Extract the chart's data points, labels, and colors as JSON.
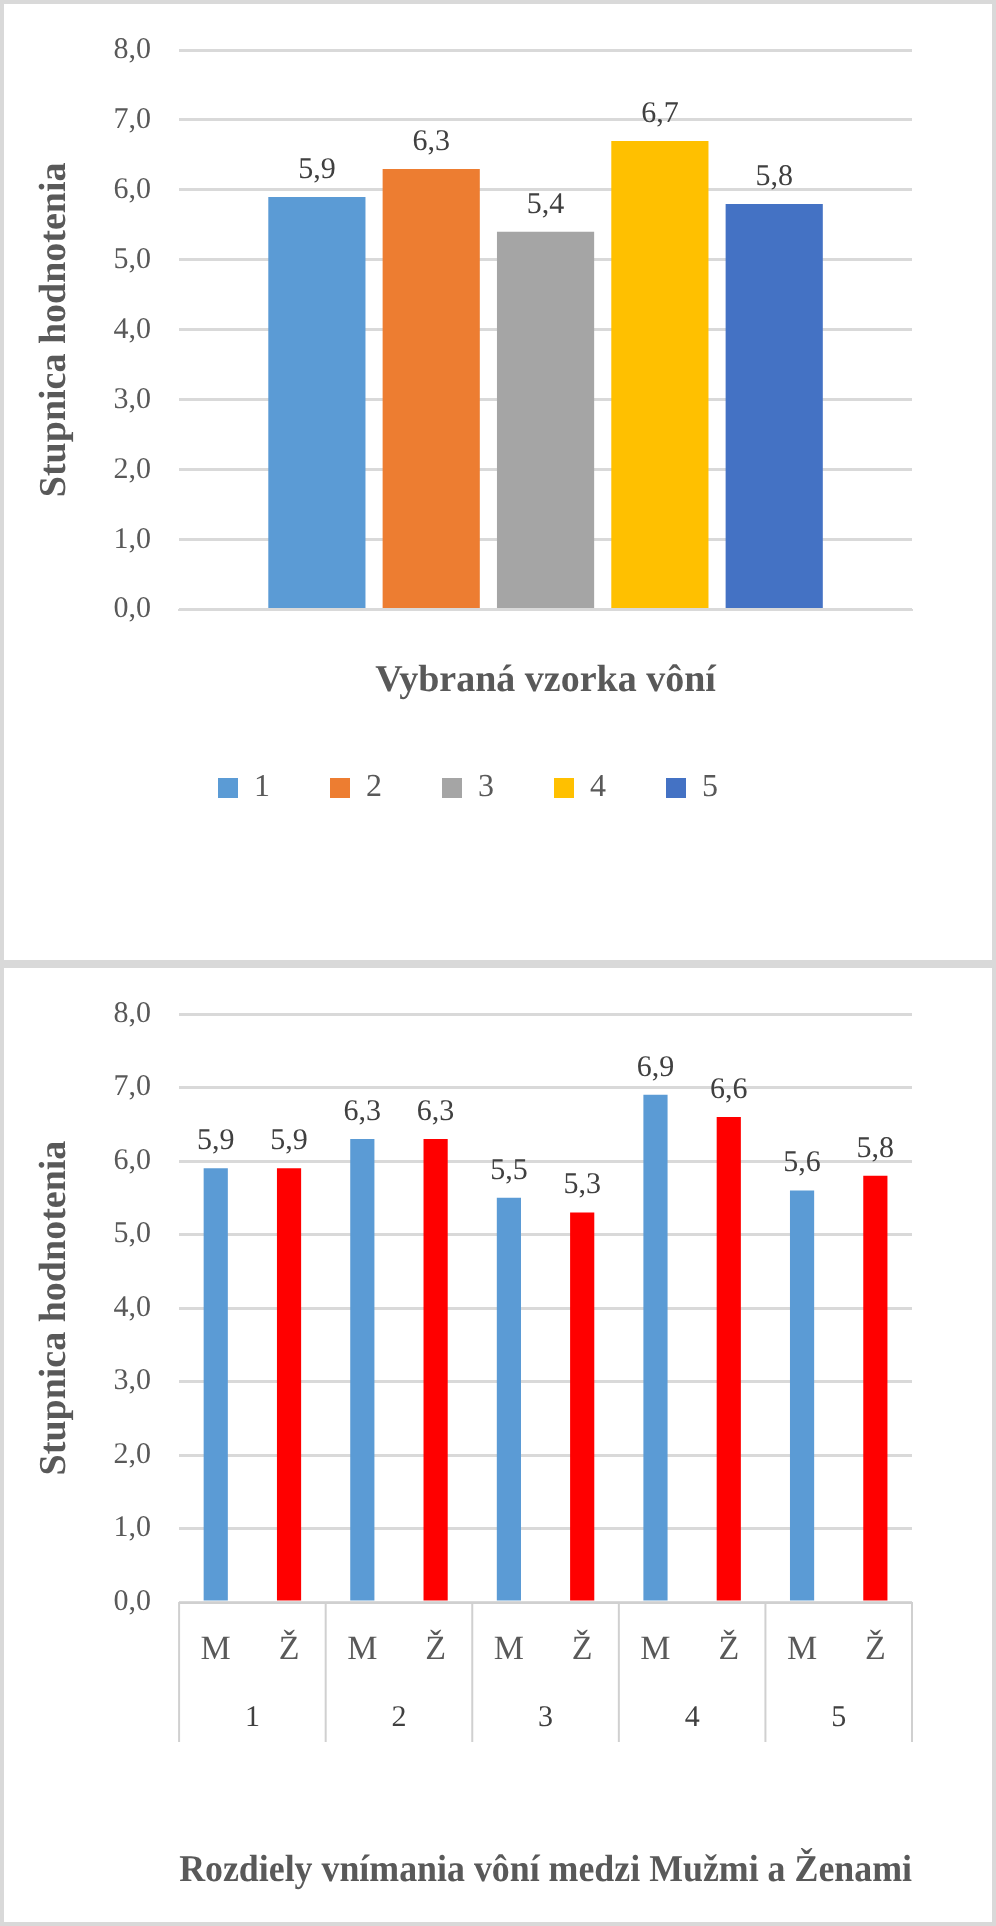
{
  "chart_data": [
    {
      "type": "bar",
      "xlabel": "Vybraná vzorka vôní",
      "ylabel": "Stupnica hodnotenia",
      "categories": [
        null
      ],
      "series": [
        {
          "name": "1",
          "color": "#5b9bd5",
          "values": [
            5.9
          ],
          "value_labels": [
            "5,9"
          ]
        },
        {
          "name": "2",
          "color": "#ed7d31",
          "values": [
            6.3
          ],
          "value_labels": [
            "6,3"
          ]
        },
        {
          "name": "3",
          "color": "#a5a5a5",
          "values": [
            5.4
          ],
          "value_labels": [
            "5,4"
          ]
        },
        {
          "name": "4",
          "color": "#ffc000",
          "values": [
            6.7
          ],
          "value_labels": [
            "6,7"
          ]
        },
        {
          "name": "5",
          "color": "#4472c4",
          "values": [
            5.8
          ],
          "value_labels": [
            "5,8"
          ]
        }
      ],
      "ylim": [
        0,
        8
      ],
      "yticks": [
        {
          "value": 0,
          "label": "0,0"
        },
        {
          "value": 1,
          "label": "1,0"
        },
        {
          "value": 2,
          "label": "2,0"
        },
        {
          "value": 3,
          "label": "3,0"
        },
        {
          "value": 4,
          "label": "4,0"
        },
        {
          "value": 5,
          "label": "5,0"
        },
        {
          "value": 6,
          "label": "6,0"
        },
        {
          "value": 7,
          "label": "7,0"
        },
        {
          "value": 8,
          "label": "8,0"
        }
      ],
      "grid": "y",
      "legend": "bottom"
    },
    {
      "type": "bar",
      "xlabel": "Rozdiely vnímania vôní medzi Mužmi a Ženami",
      "ylabel": "Stupnica hodnotenia",
      "categories": [
        "M",
        "Ž",
        "M",
        "Ž",
        "M",
        "Ž",
        "M",
        "Ž",
        "M",
        "Ž"
      ],
      "values": [
        5.9,
        5.9,
        6.3,
        6.3,
        5.5,
        5.3,
        6.9,
        6.6,
        5.6,
        5.8
      ],
      "value_labels": [
        "5,9",
        "5,9",
        "6,3",
        "6,3",
        "5,5",
        "5,3",
        "6,9",
        "6,6",
        "5,6",
        "5,8"
      ],
      "colors": [
        "#5b9bd5",
        "#ff0000",
        "#5b9bd5",
        "#ff0000",
        "#5b9bd5",
        "#ff0000",
        "#5b9bd5",
        "#ff0000",
        "#5b9bd5",
        "#ff0000"
      ],
      "annotations": [
        "1",
        "2",
        "3",
        "4",
        "5"
      ],
      "ylim": [
        0,
        8
      ],
      "yticks": [
        {
          "value": 0,
          "label": "0,0"
        },
        {
          "value": 1,
          "label": "1,0"
        },
        {
          "value": 2,
          "label": "2,0"
        },
        {
          "value": 3,
          "label": "3,0"
        },
        {
          "value": 4,
          "label": "4,0"
        },
        {
          "value": 5,
          "label": "5,0"
        },
        {
          "value": 6,
          "label": "6,0"
        },
        {
          "value": 7,
          "label": "7,0"
        },
        {
          "value": 8,
          "label": "8,0"
        }
      ],
      "grid": "y"
    }
  ]
}
